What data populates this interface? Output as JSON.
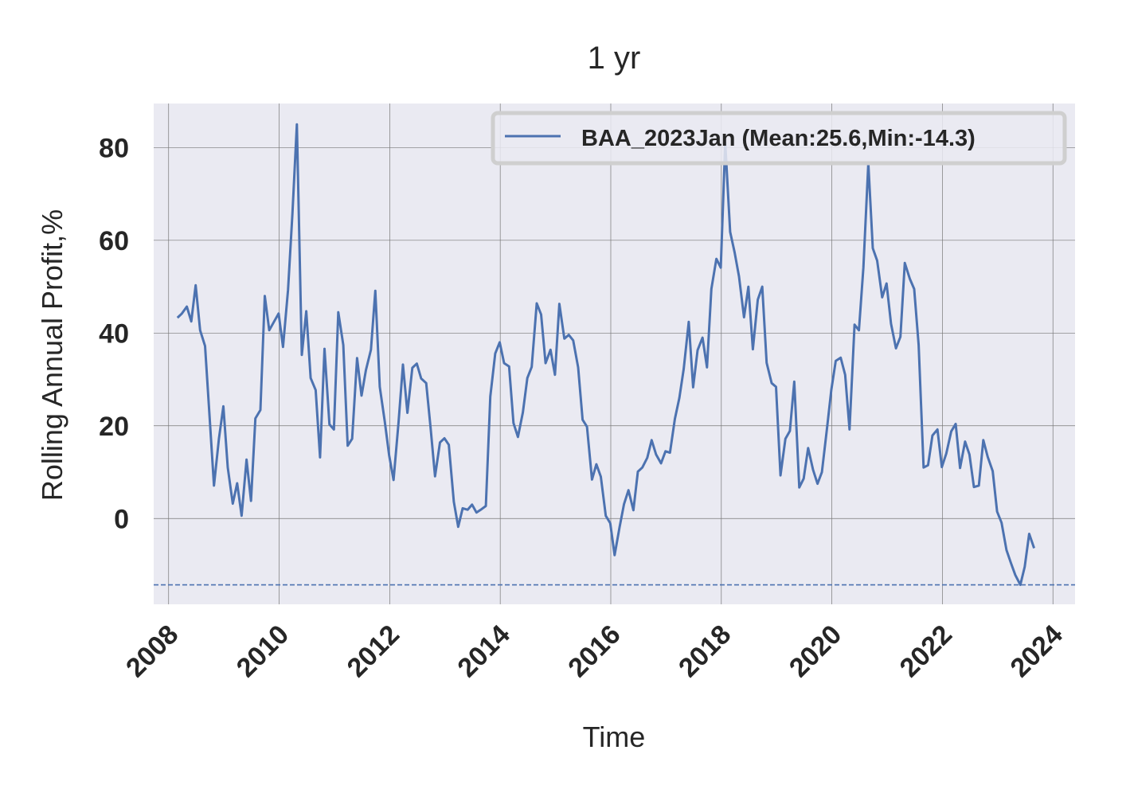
{
  "chart_data": {
    "type": "line",
    "title": "1 yr",
    "xlabel": "Time",
    "ylabel": "Rolling Annual Profit,%",
    "xlim": [
      2007.73,
      2024.4
    ],
    "ylim": [
      -18.5,
      89.5
    ],
    "x_ticks": [
      2008,
      2010,
      2012,
      2014,
      2016,
      2018,
      2020,
      2022,
      2024
    ],
    "y_ticks": [
      0,
      20,
      40,
      60,
      80
    ],
    "grid": true,
    "legend_position": "top-right",
    "colors": {
      "line": "#4c72b0",
      "background": "#eaeaf2",
      "grid": "#777777"
    },
    "series": [
      {
        "name": "BAA_2023Jan (Mean:25.6,Min:-14.3)",
        "x": [
          2008.16,
          2008.24,
          2008.33,
          2008.41,
          2008.49,
          2008.57,
          2008.66,
          2008.74,
          2008.82,
          2008.91,
          2008.99,
          2009.07,
          2009.16,
          2009.24,
          2009.32,
          2009.41,
          2009.49,
          2009.57,
          2009.66,
          2009.74,
          2009.82,
          2009.91,
          2009.99,
          2010.07,
          2010.16,
          2010.24,
          2010.32,
          2010.41,
          2010.49,
          2010.57,
          2010.66,
          2010.74,
          2010.82,
          2010.91,
          2010.99,
          2011.07,
          2011.16,
          2011.24,
          2011.32,
          2011.41,
          2011.49,
          2011.57,
          2011.66,
          2011.74,
          2011.82,
          2011.91,
          2011.99,
          2012.07,
          2012.16,
          2012.24,
          2012.32,
          2012.41,
          2012.49,
          2012.57,
          2012.66,
          2012.74,
          2012.82,
          2012.91,
          2012.99,
          2013.07,
          2013.16,
          2013.24,
          2013.32,
          2013.41,
          2013.49,
          2013.57,
          2013.66,
          2013.74,
          2013.82,
          2013.91,
          2013.99,
          2014.07,
          2014.16,
          2014.24,
          2014.32,
          2014.41,
          2014.49,
          2014.57,
          2014.66,
          2014.74,
          2014.82,
          2014.91,
          2014.99,
          2015.07,
          2015.16,
          2015.24,
          2015.32,
          2015.41,
          2015.49,
          2015.57,
          2015.66,
          2015.74,
          2015.82,
          2015.91,
          2015.99,
          2016.07,
          2016.16,
          2016.24,
          2016.32,
          2016.41,
          2016.49,
          2016.57,
          2016.66,
          2016.74,
          2016.82,
          2016.91,
          2016.99,
          2017.07,
          2017.16,
          2017.24,
          2017.32,
          2017.41,
          2017.49,
          2017.57,
          2017.66,
          2017.74,
          2017.82,
          2017.91,
          2017.99,
          2018.07,
          2018.16,
          2018.24,
          2018.32,
          2018.41,
          2018.49,
          2018.57,
          2018.66,
          2018.74,
          2018.82,
          2018.91,
          2018.99,
          2019.07,
          2019.16,
          2019.24,
          2019.32,
          2019.41,
          2019.49,
          2019.57,
          2019.66,
          2019.74,
          2019.82,
          2019.91,
          2019.99,
          2020.07,
          2020.16,
          2020.24,
          2020.32,
          2020.41,
          2020.49,
          2020.57,
          2020.66,
          2020.74,
          2020.82,
          2020.91,
          2020.99,
          2021.07,
          2021.16,
          2021.24,
          2021.32,
          2021.41,
          2021.49,
          2021.57,
          2021.66,
          2021.74,
          2021.82,
          2021.91,
          2021.99,
          2022.07,
          2022.16,
          2022.24,
          2022.32,
          2022.41,
          2022.49,
          2022.57,
          2022.66,
          2022.74,
          2022.82,
          2022.91,
          2022.99,
          2023.07,
          2023.16,
          2023.24,
          2023.32,
          2023.41,
          2023.49,
          2023.57,
          2023.66
        ],
        "values": [
          43.3,
          44.2,
          45.7,
          42.5,
          50.3,
          40.6,
          37.2,
          22.2,
          7.1,
          17.2,
          24.2,
          11.0,
          3.2,
          7.6,
          0.6,
          12.7,
          3.8,
          21.6,
          23.4,
          48.0,
          40.6,
          42.5,
          44.2,
          37.0,
          49.3,
          65.7,
          85.0,
          35.3,
          44.7,
          30.3,
          27.7,
          13.2,
          36.6,
          20.3,
          19.2,
          44.5,
          37.4,
          15.7,
          17.2,
          34.6,
          26.5,
          32.0,
          36.4,
          49.1,
          28.4,
          21.0,
          13.6,
          8.3,
          20.8,
          33.2,
          22.8,
          32.5,
          33.4,
          30.2,
          29.2,
          19.6,
          9.1,
          16.4,
          17.3,
          15.9,
          3.6,
          -1.8,
          2.2,
          1.9,
          3.0,
          1.3,
          2.0,
          2.7,
          26.3,
          35.6,
          38.0,
          33.5,
          32.8,
          20.6,
          17.6,
          22.9,
          30.3,
          32.7,
          46.4,
          44.0,
          33.5,
          36.4,
          31.0,
          46.3,
          38.8,
          39.6,
          38.4,
          32.6,
          21.3,
          19.8,
          8.4,
          11.7,
          9.0,
          0.6,
          -1.0,
          -7.9,
          -1.8,
          3.1,
          6.1,
          1.8,
          10.1,
          11.0,
          13.1,
          16.9,
          13.8,
          11.9,
          14.5,
          14.2,
          21.5,
          26.0,
          32.3,
          42.4,
          28.3,
          36.3,
          39.0,
          32.6,
          49.5,
          56.0,
          54.1,
          81.0,
          61.8,
          57.4,
          52.2,
          43.4,
          50.0,
          36.5,
          47.2,
          50.0,
          33.6,
          29.2,
          28.4,
          9.3,
          17.2,
          18.9,
          29.5,
          6.7,
          8.6,
          15.2,
          10.5,
          7.5,
          10.0,
          19.3,
          27.7,
          34.0,
          34.7,
          31.0,
          19.2,
          41.8,
          40.6,
          54.1,
          76.6,
          58.3,
          55.6,
          47.7,
          50.7,
          42.0,
          36.7,
          39.2,
          55.1,
          51.7,
          49.5,
          37.4,
          11.0,
          11.5,
          17.9,
          19.2,
          11.1,
          14.0,
          18.8,
          20.4,
          10.9,
          16.6,
          13.8,
          6.8,
          7.1,
          16.9,
          13.3,
          10.2,
          1.5,
          -0.9,
          -6.8,
          -9.6,
          -12.2,
          -14.3,
          -10.4,
          -3.3,
          -6.4
        ]
      }
    ],
    "reference_lines": [
      {
        "axis": "y",
        "value": -14.3,
        "style": "dashed"
      }
    ]
  }
}
